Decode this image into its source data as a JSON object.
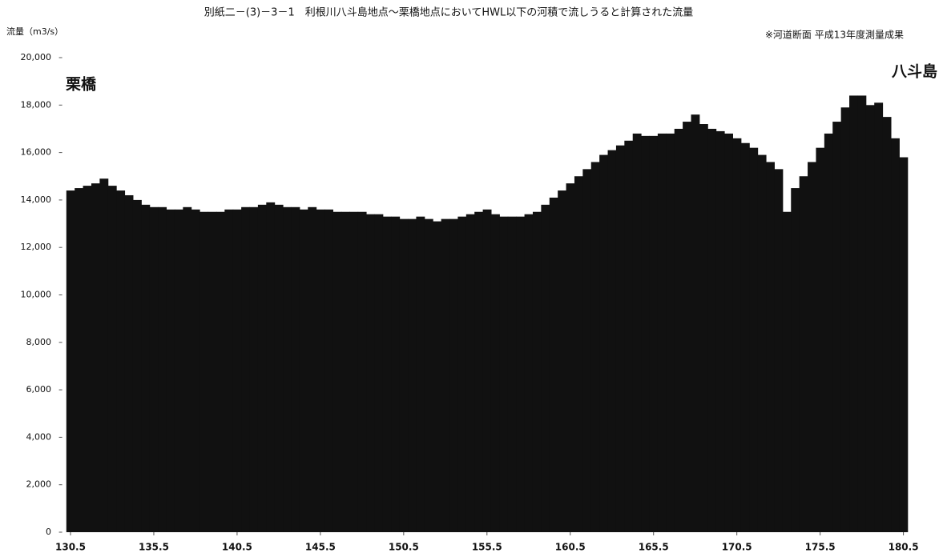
{
  "chart_data": {
    "type": "bar",
    "title": "別紙二－(3)－3－1　利根川八斗島地点～栗橋地点においてHWL以下の河積で流しうると計算された流量",
    "y_label": "流量（m3/s）",
    "note": "※河道断面 平成13年度測量成果",
    "annotations": [
      "栗橋",
      "八斗島"
    ],
    "color": "#111111",
    "x": [
      130.5,
      131,
      131.5,
      132,
      132.5,
      133,
      133.5,
      134,
      134.5,
      135,
      135.5,
      136,
      136.5,
      137,
      137.5,
      138,
      138.5,
      139,
      139.5,
      140,
      140.5,
      141,
      141.5,
      142,
      142.5,
      143,
      143.5,
      144,
      144.5,
      145,
      145.5,
      146,
      146.5,
      147,
      147.5,
      148,
      148.5,
      149,
      149.5,
      150,
      150.5,
      151,
      151.5,
      152,
      152.5,
      153,
      153.5,
      154,
      154.5,
      155,
      155.5,
      156,
      156.5,
      157,
      157.5,
      158,
      158.5,
      159,
      159.5,
      160,
      160.5,
      161,
      161.5,
      162,
      162.5,
      163,
      163.5,
      164,
      164.5,
      165,
      165.5,
      166,
      166.5,
      167,
      167.5,
      168,
      168.5,
      169,
      169.5,
      170,
      170.5,
      171,
      171.5,
      172,
      172.5,
      173,
      173.5,
      174,
      174.5,
      175,
      175.5,
      176,
      176.5,
      177,
      177.5,
      178,
      178.5,
      179,
      179.5,
      180,
      180.5
    ],
    "values": [
      14400,
      14500,
      14600,
      14700,
      14900,
      14600,
      14400,
      14200,
      14000,
      13800,
      13700,
      13700,
      13600,
      13600,
      13700,
      13600,
      13500,
      13500,
      13500,
      13600,
      13600,
      13700,
      13700,
      13800,
      13900,
      13800,
      13700,
      13700,
      13600,
      13700,
      13600,
      13600,
      13500,
      13500,
      13500,
      13500,
      13400,
      13400,
      13300,
      13300,
      13200,
      13200,
      13300,
      13200,
      13100,
      13200,
      13200,
      13300,
      13400,
      13500,
      13600,
      13400,
      13300,
      13300,
      13300,
      13400,
      13500,
      13800,
      14100,
      14400,
      14700,
      15000,
      15300,
      15600,
      15900,
      16100,
      16300,
      16500,
      16800,
      16700,
      16700,
      16800,
      16800,
      17000,
      17300,
      17600,
      17200,
      17000,
      16900,
      16800,
      16600,
      16400,
      16200,
      15900,
      15600,
      15300,
      13500,
      14500,
      15000,
      15600,
      16200,
      16800,
      17300,
      17900,
      18400,
      18400,
      18000,
      18100,
      17500,
      16600,
      15800
    ],
    "xlim": [
      130,
      181
    ],
    "xticks": [
      130.5,
      135.5,
      140.5,
      145.5,
      150.5,
      155.5,
      160.5,
      165.5,
      170.5,
      175.5,
      180.5
    ],
    "ylim": [
      0,
      20000
    ],
    "yticks": [
      0,
      {
        "value": 2000,
        "label": "2,000"
      },
      {
        "value": 4000,
        "label": "4,000"
      },
      {
        "value": 6000,
        "label": "6,000"
      },
      {
        "value": 8000,
        "label": "8,000"
      },
      {
        "value": 10000,
        "label": "10,000"
      },
      {
        "value": 12000,
        "label": "12,000"
      },
      {
        "value": 14000,
        "label": "14,000"
      },
      {
        "value": 16000,
        "label": "16,000"
      },
      {
        "value": 18000,
        "label": "18,000"
      },
      {
        "value": 20000,
        "label": "20,000"
      }
    ]
  }
}
